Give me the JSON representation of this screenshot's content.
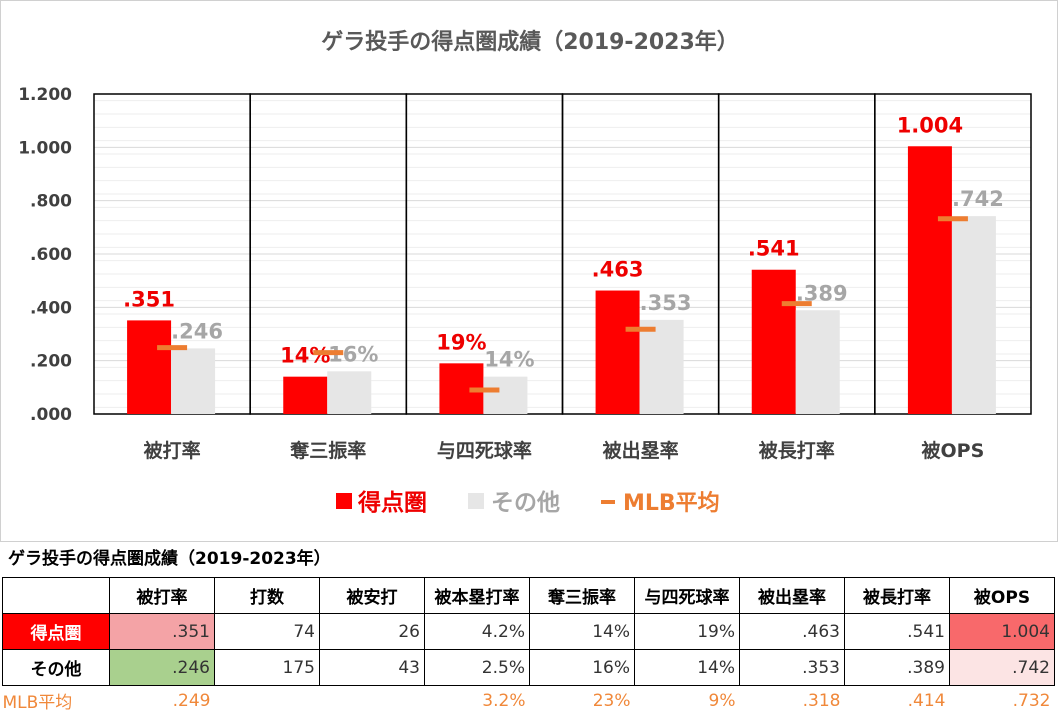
{
  "chart_data": {
    "type": "bar",
    "title": "ゲラ投手の得点圏成績（2019-2023年）",
    "categories": [
      "被打率",
      "奪三振率",
      "与四死球率",
      "被出塁率",
      "被長打率",
      "被OPS"
    ],
    "series": [
      {
        "name": "得点圏",
        "color": "#ff0000",
        "label_color": "#ee0000",
        "values": [
          0.351,
          0.14,
          0.19,
          0.463,
          0.541,
          1.004
        ],
        "labels": [
          ".351",
          "14%",
          "19%",
          ".463",
          ".541",
          "1.004"
        ]
      },
      {
        "name": "その他",
        "color": "#e6e6e6",
        "label_color": "#a6a6a6",
        "values": [
          0.246,
          0.16,
          0.14,
          0.353,
          0.389,
          0.742
        ],
        "labels": [
          ".246",
          "16%",
          "14%",
          ".353",
          ".389",
          ".742"
        ]
      }
    ],
    "mlb_average": {
      "name": "MLB平均",
      "color": "#ed7d31",
      "values": [
        0.249,
        0.23,
        0.09,
        0.318,
        0.414,
        0.732
      ]
    },
    "yticks": [
      "1.200",
      "1.000",
      ".800",
      ".600",
      ".400",
      ".200",
      ".000"
    ],
    "ylim": [
      0,
      1.2
    ],
    "grid": true,
    "legend_position": "bottom",
    "legend_labels": [
      "得点圏",
      "その他",
      "MLB平均"
    ]
  },
  "table": {
    "title": "ゲラ投手の得点圏成績（2019-2023年）",
    "headers": [
      "",
      "被打率",
      "打数",
      "被安打",
      "被本塁打率",
      "奪三振率",
      "与四死球率",
      "被出塁率",
      "被長打率",
      "被OPS"
    ],
    "rows": [
      {
        "label": "得点圏",
        "cells": [
          ".351",
          "74",
          "26",
          "4.2%",
          "14%",
          "19%",
          ".463",
          ".541",
          "1.004"
        ]
      },
      {
        "label": "その他",
        "cells": [
          ".246",
          "175",
          "43",
          "2.5%",
          "16%",
          "14%",
          ".353",
          ".389",
          ".742"
        ]
      },
      {
        "label": "MLB平均",
        "cells": [
          ".249",
          "",
          "",
          "3.2%",
          "23%",
          "9%",
          ".318",
          ".414",
          ".732"
        ]
      }
    ],
    "colors": {
      "highlight_label": "#ff0000",
      "highlight_high": "#f8696b",
      "highlight_low": "#fce4e4",
      "highlight_good": "#a9d08e",
      "mid_pink": "#f4a3a6",
      "mlb_text": "#f0883a"
    }
  }
}
